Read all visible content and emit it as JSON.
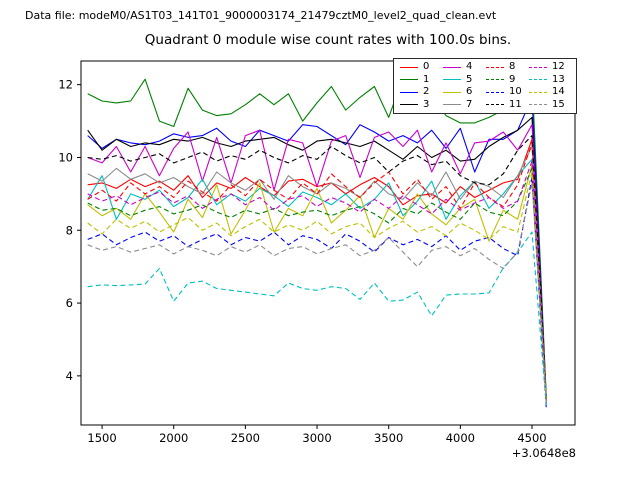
{
  "header": {
    "datafile": "Data file: modeM0/AS1T03_141T01_9000003174_21479cztM0_level2_quad_clean.evt"
  },
  "chart_data": {
    "type": "line",
    "title": "Quadrant 0 module wise count rates with 100.0s bins.",
    "xlabel": "",
    "ylabel": "",
    "x_axis_offset_label": "+3.0648e8",
    "x_offset_value": 306480000,
    "bin_seconds": 100.0,
    "grid": false,
    "legend_position": "upper right",
    "legend_labels": [
      "0",
      "1",
      "2",
      "3",
      "4",
      "5",
      "6",
      "7",
      "8",
      "9",
      "10",
      "11",
      "12",
      "13",
      "14",
      "15"
    ],
    "xlim": [
      1353,
      4800
    ],
    "ylim": [
      2.65,
      12.65
    ],
    "xticks": [
      1500,
      2000,
      2500,
      3000,
      3500,
      4000,
      4500
    ],
    "yticks": [
      4,
      6,
      8,
      10,
      12
    ],
    "axis_color": "#000000",
    "x": [
      1400,
      1500,
      1600,
      1700,
      1800,
      1900,
      2000,
      2100,
      2200,
      2300,
      2400,
      2500,
      2600,
      2700,
      2800,
      2900,
      3000,
      3100,
      3200,
      3300,
      3400,
      3500,
      3600,
      3700,
      3800,
      3900,
      4000,
      4100,
      4200,
      4300,
      4400,
      4500,
      4600
    ],
    "series": [
      {
        "label": "0",
        "color": "#ff0000",
        "dash": false,
        "values": [
          9.25,
          9.3,
          9.15,
          9.4,
          9.2,
          9.35,
          9.1,
          9.5,
          8.9,
          9.3,
          9.15,
          9.45,
          9.2,
          8.95,
          9.35,
          9.4,
          9.2,
          9.3,
          9.0,
          9.25,
          9.45,
          9.2,
          8.7,
          8.95,
          9.0,
          8.75,
          9.2,
          8.9,
          9.1,
          9.3,
          9.4,
          10.5,
          3.25
        ]
      },
      {
        "label": "1",
        "color": "#008000",
        "dash": false,
        "values": [
          11.75,
          11.55,
          11.5,
          11.55,
          12.15,
          11.0,
          10.85,
          11.9,
          11.3,
          11.15,
          11.2,
          11.45,
          11.75,
          11.45,
          11.75,
          11.0,
          11.5,
          11.95,
          11.3,
          11.65,
          11.95,
          11.1,
          12.2,
          11.45,
          11.7,
          11.15,
          10.95,
          10.95,
          11.1,
          11.3,
          11.6,
          12.25,
          3.4
        ]
      },
      {
        "label": "2",
        "color": "#0000ff",
        "dash": false,
        "values": [
          10.6,
          10.25,
          10.5,
          10.4,
          10.35,
          10.45,
          10.65,
          10.55,
          10.6,
          10.8,
          10.45,
          10.3,
          10.75,
          10.6,
          10.45,
          10.9,
          10.85,
          10.6,
          10.35,
          10.9,
          10.7,
          10.45,
          10.6,
          10.4,
          10.75,
          10.25,
          10.8,
          9.6,
          10.5,
          10.5,
          10.75,
          11.65,
          3.3
        ]
      },
      {
        "label": "3",
        "color": "#000000",
        "dash": false,
        "values": [
          10.75,
          10.2,
          10.5,
          10.3,
          10.4,
          10.35,
          10.5,
          10.45,
          10.55,
          10.4,
          10.3,
          10.45,
          10.5,
          10.55,
          10.35,
          10.2,
          10.45,
          10.5,
          10.4,
          10.3,
          10.45,
          10.2,
          9.95,
          10.3,
          10.0,
          10.2,
          9.9,
          9.95,
          10.3,
          10.55,
          10.75,
          11.1,
          3.35
        ]
      },
      {
        "label": "4",
        "color": "#cc00cc",
        "dash": false,
        "values": [
          10.0,
          9.85,
          10.3,
          9.6,
          10.3,
          9.5,
          10.25,
          10.7,
          9.35,
          10.55,
          9.3,
          10.6,
          10.75,
          9.1,
          10.5,
          10.4,
          9.2,
          10.45,
          10.6,
          9.45,
          10.55,
          10.7,
          10.3,
          10.75,
          9.6,
          10.4,
          9.55,
          10.4,
          10.45,
          10.7,
          10.2,
          10.9,
          3.3
        ]
      },
      {
        "label": "5",
        "color": "#00bfbf",
        "dash": false,
        "values": [
          8.85,
          9.5,
          8.3,
          9.0,
          8.85,
          9.1,
          8.65,
          8.9,
          9.4,
          8.7,
          9.0,
          8.8,
          9.15,
          8.95,
          8.65,
          9.05,
          8.9,
          8.7,
          9.0,
          8.6,
          8.85,
          9.3,
          8.4,
          8.8,
          9.35,
          8.3,
          8.95,
          9.35,
          8.6,
          9.0,
          9.5,
          9.95,
          3.3
        ]
      },
      {
        "label": "6",
        "color": "#bfbf00",
        "dash": false,
        "values": [
          8.7,
          8.4,
          8.6,
          8.3,
          9.0,
          8.5,
          7.95,
          8.85,
          8.35,
          9.25,
          7.9,
          8.55,
          9.3,
          7.95,
          8.6,
          8.4,
          9.15,
          8.2,
          8.55,
          8.95,
          7.8,
          8.6,
          8.3,
          9.0,
          8.45,
          8.15,
          8.6,
          8.85,
          7.7,
          8.55,
          8.3,
          9.8,
          3.35
        ]
      },
      {
        "label": "7",
        "color": "#8c8c8c",
        "dash": false,
        "values": [
          9.55,
          9.35,
          9.7,
          9.4,
          9.55,
          9.3,
          9.45,
          9.2,
          9.0,
          9.6,
          9.3,
          9.1,
          9.4,
          8.85,
          9.5,
          9.2,
          9.0,
          9.3,
          9.15,
          8.9,
          9.35,
          9.0,
          8.85,
          9.3,
          8.95,
          9.6,
          8.85,
          9.35,
          9.2,
          8.9,
          9.5,
          10.3,
          3.4
        ]
      },
      {
        "label": "8",
        "color": "#ff0000",
        "dash": true,
        "values": [
          8.85,
          9.1,
          8.8,
          9.3,
          9.0,
          9.2,
          8.9,
          9.35,
          9.05,
          8.8,
          9.25,
          8.95,
          9.4,
          9.1,
          8.85,
          9.3,
          9.0,
          9.55,
          9.2,
          8.9,
          9.3,
          9.6,
          9.0,
          9.4,
          8.85,
          9.2,
          8.6,
          9.3,
          8.9,
          8.65,
          9.25,
          10.4,
          3.3
        ]
      },
      {
        "label": "9",
        "color": "#008000",
        "dash": true,
        "values": [
          8.75,
          8.55,
          8.6,
          8.4,
          8.55,
          8.65,
          8.45,
          8.55,
          8.7,
          8.5,
          8.35,
          8.55,
          8.45,
          8.6,
          8.4,
          8.5,
          8.55,
          8.4,
          8.55,
          8.65,
          8.45,
          8.2,
          8.6,
          8.45,
          8.75,
          8.5,
          8.3,
          8.75,
          8.5,
          8.4,
          8.8,
          9.7,
          3.3
        ]
      },
      {
        "label": "10",
        "color": "#0000ff",
        "dash": true,
        "values": [
          7.75,
          7.9,
          7.6,
          7.8,
          7.95,
          7.7,
          7.85,
          7.55,
          7.75,
          7.9,
          7.6,
          7.8,
          7.7,
          7.95,
          7.6,
          7.85,
          7.75,
          7.5,
          7.9,
          7.7,
          7.4,
          7.8,
          7.6,
          7.75,
          7.55,
          7.85,
          7.45,
          7.7,
          7.8,
          7.5,
          7.3,
          9.45,
          3.1
        ]
      },
      {
        "label": "11",
        "color": "#000000",
        "dash": true,
        "values": [
          10.0,
          9.95,
          10.05,
          9.9,
          10.0,
          10.1,
          9.85,
          10.0,
          10.15,
          9.9,
          10.05,
          9.95,
          10.2,
          10.0,
          9.85,
          10.05,
          9.95,
          10.3,
          10.05,
          9.85,
          10.0,
          9.6,
          9.9,
          10.05,
          9.8,
          9.9,
          9.5,
          9.3,
          9.25,
          9.55,
          10.2,
          10.6,
          3.35
        ]
      },
      {
        "label": "12",
        "color": "#cc00cc",
        "dash": true,
        "values": [
          9.0,
          8.8,
          8.95,
          8.7,
          8.9,
          9.05,
          8.75,
          8.95,
          8.6,
          8.85,
          9.0,
          8.7,
          8.9,
          8.55,
          8.85,
          8.95,
          8.65,
          8.9,
          8.75,
          8.5,
          8.85,
          8.6,
          8.95,
          8.7,
          8.45,
          8.85,
          8.55,
          8.75,
          8.9,
          8.6,
          8.8,
          9.9,
          3.25
        ]
      },
      {
        "label": "13",
        "color": "#00bfbf",
        "dash": true,
        "values": [
          6.45,
          6.5,
          6.48,
          6.5,
          6.52,
          6.95,
          6.05,
          6.55,
          6.6,
          6.4,
          6.35,
          6.3,
          6.25,
          6.2,
          6.55,
          6.4,
          6.35,
          6.45,
          6.4,
          6.1,
          6.55,
          6.05,
          6.08,
          6.3,
          5.65,
          6.22,
          6.25,
          6.25,
          6.28,
          6.97,
          7.4,
          7.95,
          3.2
        ]
      },
      {
        "label": "14",
        "color": "#bfbf00",
        "dash": true,
        "values": [
          8.2,
          7.9,
          8.3,
          8.05,
          8.25,
          7.95,
          8.15,
          8.35,
          8.0,
          8.2,
          7.85,
          8.1,
          8.3,
          7.95,
          8.15,
          8.0,
          8.25,
          7.9,
          8.1,
          8.2,
          7.8,
          8.05,
          8.25,
          7.95,
          8.1,
          7.85,
          8.2,
          8.0,
          7.75,
          8.1,
          7.95,
          9.6,
          3.3
        ]
      },
      {
        "label": "15",
        "color": "#8c8c8c",
        "dash": true,
        "values": [
          7.6,
          7.45,
          7.55,
          7.4,
          7.5,
          7.6,
          7.35,
          7.55,
          7.45,
          7.3,
          7.55,
          7.4,
          7.6,
          7.3,
          7.5,
          7.55,
          7.35,
          7.5,
          7.6,
          7.3,
          7.45,
          7.8,
          7.4,
          7.0,
          7.45,
          7.55,
          7.3,
          7.5,
          7.2,
          6.95,
          7.4,
          9.3,
          3.25
        ]
      }
    ]
  }
}
